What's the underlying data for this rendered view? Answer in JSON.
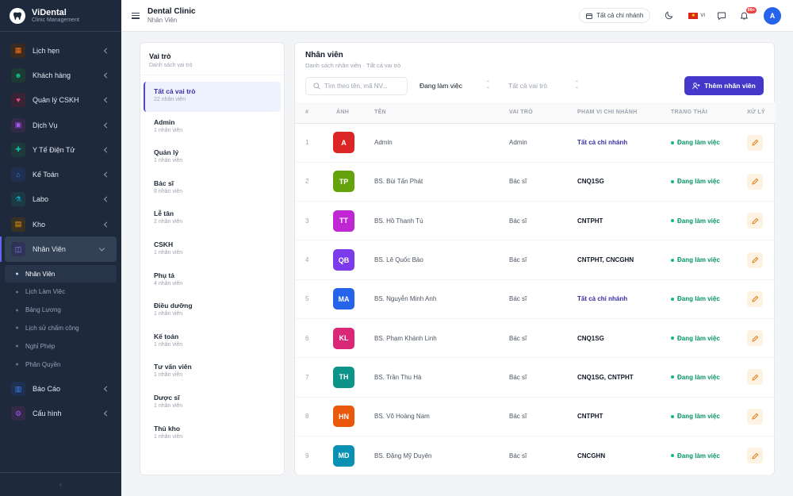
{
  "brand": {
    "title": "ViDental",
    "subtitle": "Clinic Management"
  },
  "sidebar": {
    "items": [
      {
        "label": "Lịch hẹn",
        "icon": "calendar-icon",
        "color": "#f97316",
        "bg": "#3b2a1f"
      },
      {
        "label": "Khách hàng",
        "icon": "users-icon",
        "color": "#10b981",
        "bg": "#1d3a35"
      },
      {
        "label": "Quản lý CSKH",
        "icon": "heart-icon",
        "color": "#ec4899",
        "bg": "#3b2336"
      },
      {
        "label": "Dịch Vụ",
        "icon": "box-icon",
        "color": "#a855f7",
        "bg": "#332a4a"
      },
      {
        "label": "Y Tế Điện Tử",
        "icon": "medical-icon",
        "color": "#14b8a6",
        "bg": "#1d3a3a"
      },
      {
        "label": "Kế Toán",
        "icon": "bank-icon",
        "color": "#3b82f6",
        "bg": "#1f3050"
      },
      {
        "label": "Labo",
        "icon": "flask-icon",
        "color": "#06b6d4",
        "bg": "#1d3942"
      },
      {
        "label": "Kho",
        "icon": "archive-icon",
        "color": "#f59e0b",
        "bg": "#3a3122"
      },
      {
        "label": "Nhân Viên",
        "icon": "briefcase-icon",
        "color": "#818cf8",
        "bg": "#2e3357"
      }
    ],
    "sub_items": [
      "Nhân Viên",
      "Lịch Làm Việc",
      "Bảng Lương",
      "Lịch sử chấm công",
      "Nghỉ Phép",
      "Phân Quyền"
    ],
    "bottom_items": [
      {
        "label": "Báo Cáo",
        "icon": "chart-icon",
        "color": "#3b82f6",
        "bg": "#1f3050"
      },
      {
        "label": "Cấu hình",
        "icon": "gear-icon",
        "color": "#a855f7",
        "bg": "#332a4a"
      }
    ],
    "collapse_label": "‹"
  },
  "topbar": {
    "title": "Dental Clinic",
    "subtitle": "Nhân Viên",
    "branch_label": "Tất cả chi nhánh",
    "lang": "VI",
    "notif_count": "99+",
    "user_initial": "A"
  },
  "roles_panel": {
    "title": "Vai trò",
    "subtitle": "Danh sách vai trò",
    "items": [
      {
        "name": "Tất cả vai trò",
        "count": "22 nhân viên"
      },
      {
        "name": "Admin",
        "count": "1 nhân viên"
      },
      {
        "name": "Quản lý",
        "count": "1 nhân viên"
      },
      {
        "name": "Bác sĩ",
        "count": "8 nhân viên"
      },
      {
        "name": "Lễ tân",
        "count": "2 nhân viên"
      },
      {
        "name": "CSKH",
        "count": "1 nhân viên"
      },
      {
        "name": "Phụ tá",
        "count": "4 nhân viên"
      },
      {
        "name": "Điều dưỡng",
        "count": "1 nhân viên"
      },
      {
        "name": "Kế toán",
        "count": "1 nhân viên"
      },
      {
        "name": "Tư vấn viên",
        "count": "1 nhân viên"
      },
      {
        "name": "Dược sĩ",
        "count": "1 nhân viên"
      },
      {
        "name": "Thủ kho",
        "count": "1 nhân viên"
      }
    ]
  },
  "staff_panel": {
    "title": "Nhân viên",
    "subtitle": "Danh sách nhân viên · Tất cả vai trò",
    "search_placeholder": "Tìm theo tên, mã NV...",
    "status_filter": "Đang làm việc",
    "role_filter": "Tất cả vai trò",
    "add_button": "Thêm nhân viên",
    "columns": [
      "#",
      "ẢNH",
      "TÊN",
      "VAI TRÒ",
      "PHẠM VI CHI NHÁNH",
      "TRẠNG THÁI",
      "XỬ LÝ"
    ],
    "rows": [
      {
        "no": "1",
        "initials": "A",
        "color": "#dc2626",
        "name": "Admin",
        "role": "Admin",
        "scope": "Tất cả chi nhánh",
        "scope_all": true,
        "status": "Đang làm việc"
      },
      {
        "no": "2",
        "initials": "TP",
        "color": "#65a30d",
        "name": "BS. Bùi Tấn Phát",
        "role": "Bác sĩ",
        "scope": "CNQ1SG",
        "scope_all": false,
        "status": "Đang làm việc"
      },
      {
        "no": "3",
        "initials": "TT",
        "color": "#c026d3",
        "name": "BS. Hồ Thanh Tú",
        "role": "Bác sĩ",
        "scope": "CNTPHT",
        "scope_all": false,
        "status": "Đang làm việc"
      },
      {
        "no": "4",
        "initials": "QB",
        "color": "#7c3aed",
        "name": "BS. Lê Quốc Bảo",
        "role": "Bác sĩ",
        "scope": "CNTPHT, CNCGHN",
        "scope_all": false,
        "status": "Đang làm việc"
      },
      {
        "no": "5",
        "initials": "MA",
        "color": "#2563eb",
        "name": "BS. Nguyễn Minh Anh",
        "role": "Bác sĩ",
        "scope": "Tất cả chi nhánh",
        "scope_all": true,
        "status": "Đang làm việc"
      },
      {
        "no": "6",
        "initials": "KL",
        "color": "#db2777",
        "name": "BS. Phạm Khánh Linh",
        "role": "Bác sĩ",
        "scope": "CNQ1SG",
        "scope_all": false,
        "status": "Đang làm việc"
      },
      {
        "no": "7",
        "initials": "TH",
        "color": "#0d9488",
        "name": "BS. Trần Thu Hà",
        "role": "Bác sĩ",
        "scope": "CNQ1SG, CNTPHT",
        "scope_all": false,
        "status": "Đang làm việc"
      },
      {
        "no": "8",
        "initials": "HN",
        "color": "#ea580c",
        "name": "BS. Võ Hoàng Nam",
        "role": "Bác sĩ",
        "scope": "CNTPHT",
        "scope_all": false,
        "status": "Đang làm việc"
      },
      {
        "no": "9",
        "initials": "MD",
        "color": "#0891b2",
        "name": "BS. Đặng Mỹ Duyên",
        "role": "Bác sĩ",
        "scope": "CNCGHN",
        "scope_all": false,
        "status": "Đang làm việc"
      }
    ]
  }
}
